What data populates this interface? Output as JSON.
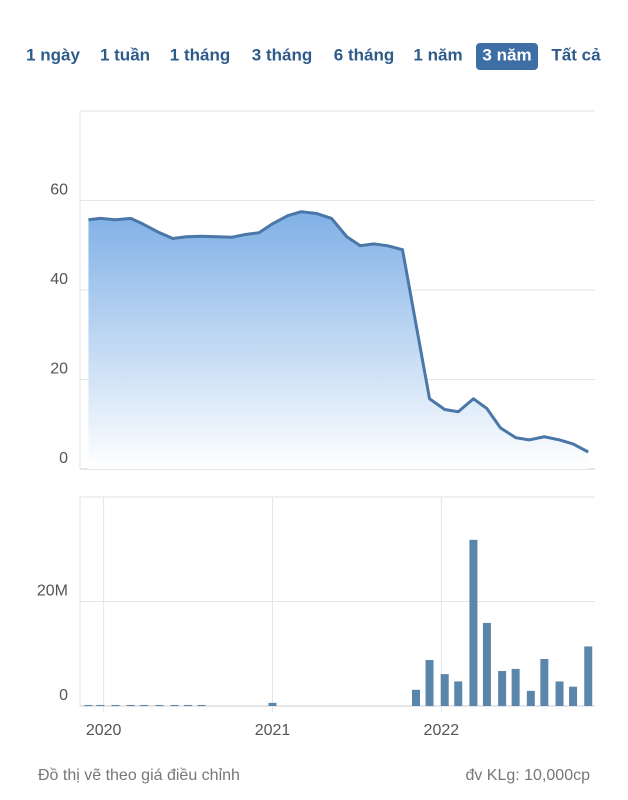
{
  "tabs": {
    "items": [
      "1 ngày",
      "1 tuần",
      "1 tháng",
      "3 tháng",
      "6 tháng",
      "1 năm",
      "3 năm",
      "Tất cả"
    ],
    "selected": 6
  },
  "chart_data": [
    {
      "type": "area",
      "color": "#4a77a8",
      "fill": "#7fb0e6",
      "x": [
        2019.91,
        2019.98,
        2020.07,
        2020.16,
        2020.23,
        2020.32,
        2020.41,
        2020.49,
        2020.58,
        2020.67,
        2020.76,
        2020.84,
        2020.92,
        2021.0,
        2021.09,
        2021.17,
        2021.26,
        2021.35,
        2021.44,
        2021.52,
        2021.6,
        2021.68,
        2021.77,
        2021.84,
        2021.93,
        2022.02,
        2022.1,
        2022.19,
        2022.27,
        2022.35,
        2022.44,
        2022.52,
        2022.61,
        2022.7,
        2022.78,
        2022.87
      ],
      "values": [
        55.7,
        56.0,
        55.7,
        56.0,
        54.8,
        53.0,
        51.5,
        51.9,
        52.0,
        51.9,
        51.8,
        52.4,
        52.8,
        54.8,
        56.6,
        57.5,
        57.1,
        56.0,
        51.9,
        49.9,
        50.3,
        49.9,
        49.0,
        34.4,
        15.7,
        13.3,
        12.8,
        15.7,
        13.5,
        9.2,
        7.0,
        6.5,
        7.2,
        6.5,
        5.6,
        3.8
      ],
      "xlim": [
        2019.86,
        2022.91
      ],
      "ylim": [
        0,
        80
      ],
      "yticks": [
        0,
        20,
        40,
        60
      ],
      "grid": true
    },
    {
      "type": "bar",
      "color": "#5b86ab",
      "x": [
        2019.91,
        2019.98,
        2020.07,
        2020.16,
        2020.24,
        2020.33,
        2020.42,
        2020.5,
        2020.58,
        2021.0,
        2021.85,
        2021.93,
        2022.02,
        2022.1,
        2022.19,
        2022.27,
        2022.36,
        2022.44,
        2022.53,
        2022.61,
        2022.7,
        2022.78,
        2022.87
      ],
      "values": [
        200000,
        200000,
        200000,
        200000,
        200000,
        200000,
        200000,
        200000,
        200000,
        600000,
        3100000,
        8800000,
        6100000,
        4700000,
        31800000,
        15900000,
        6700000,
        7100000,
        2900000,
        9000000,
        4700000,
        3700000,
        11400000
      ],
      "xlim": [
        2019.86,
        2022.91
      ],
      "xticks": [
        2020,
        2021,
        2022
      ],
      "ylim": [
        0,
        40000000
      ],
      "yticks": [
        0,
        {
          "value": 20000000,
          "label": "20M"
        }
      ],
      "grid": true
    }
  ],
  "footer": {
    "left": "Đồ thị vẽ theo giá điều chỉnh",
    "right": "đv KLg: 10,000cp"
  }
}
